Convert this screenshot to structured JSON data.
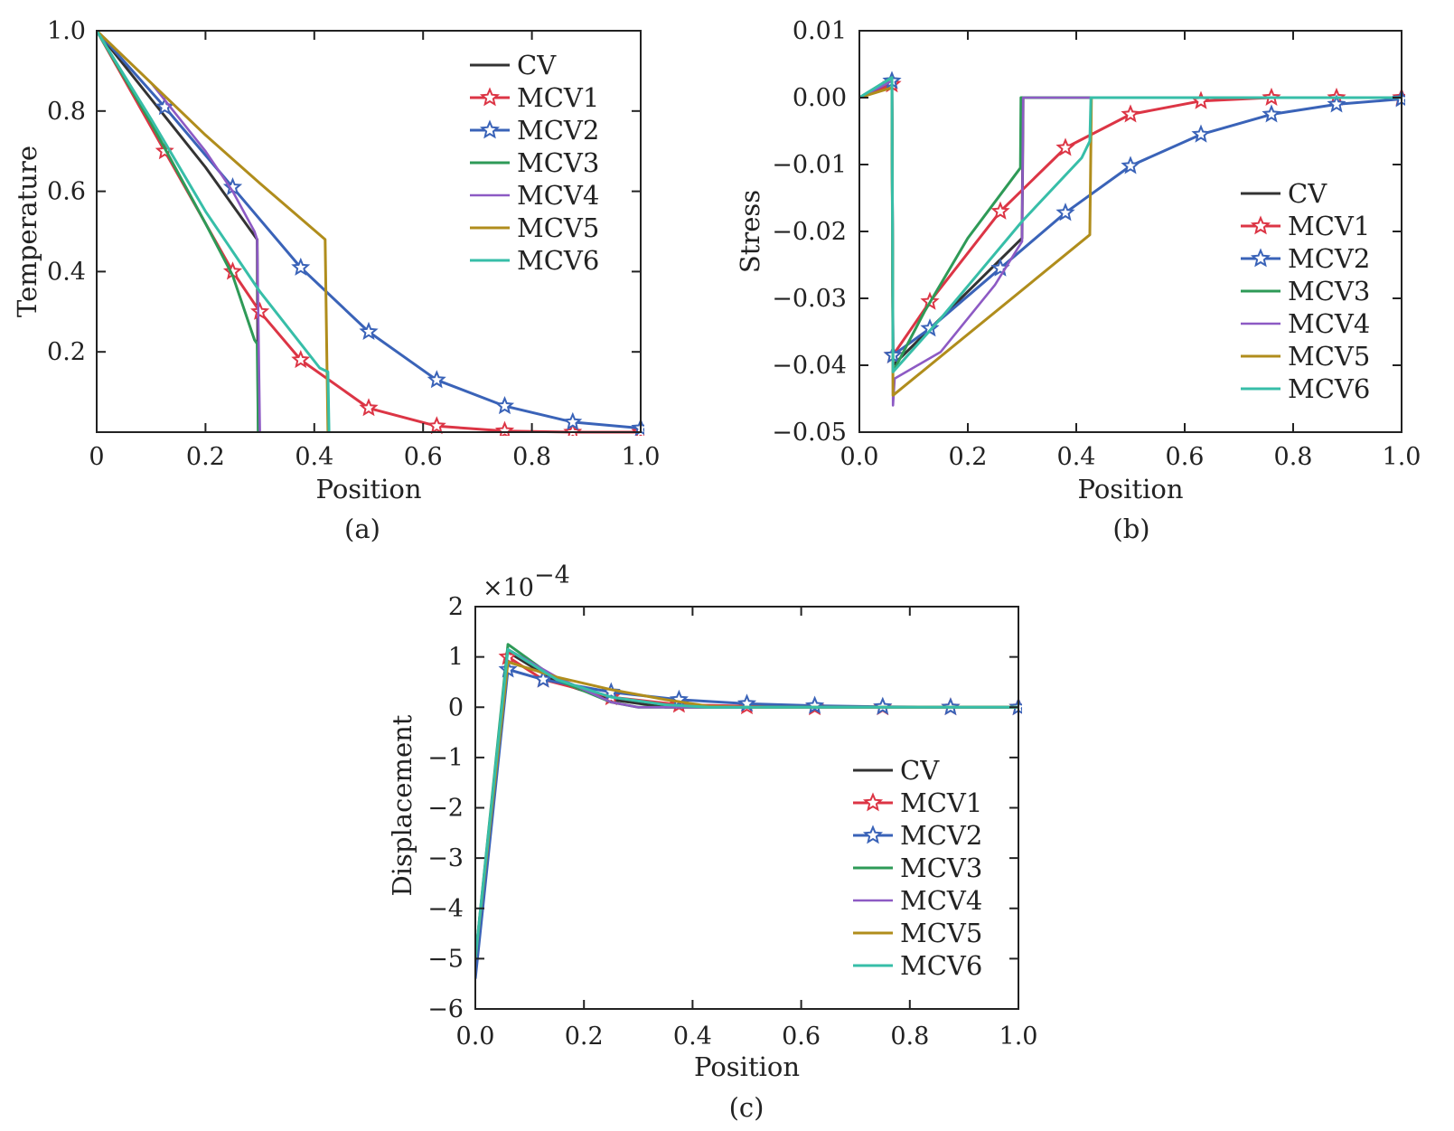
{
  "colors": {
    "CV": "#333333",
    "MCV1": "#dc3545",
    "MCV2": "#3a63b8",
    "MCV3": "#2e9a57",
    "MCV4": "#8d5ac4",
    "MCV5": "#b08d1c",
    "MCV6": "#37bea8"
  },
  "chart_data": [
    {
      "type": "line",
      "caption": "(a)",
      "xlabel": "Position",
      "ylabel": "Temperature",
      "xlim": [
        0,
        1
      ],
      "ylim": [
        0,
        1
      ],
      "xticks": [
        0,
        0.2,
        0.4,
        0.6,
        0.8,
        1.0
      ],
      "xtick_labels": [
        "0",
        "0.2",
        "0.4",
        "0.6",
        "0.8",
        "1.0"
      ],
      "yticks": [
        0.2,
        0.4,
        0.6,
        0.8,
        1.0
      ],
      "ytick_labels": [
        "0.2",
        "0.4",
        "0.6",
        "0.8",
        "1.0"
      ],
      "legend": "top-right",
      "series": [
        {
          "name": "CV",
          "marker": "none",
          "x": [
            0,
            0.1,
            0.2,
            0.295,
            0.297
          ],
          "y": [
            1,
            0.83,
            0.66,
            0.48,
            0.0
          ]
        },
        {
          "name": "MCV1",
          "marker": "star",
          "x": [
            0,
            0.125,
            0.25,
            0.3,
            0.375,
            0.5,
            0.625,
            0.75,
            0.875,
            1.0
          ],
          "y": [
            1,
            0.7,
            0.4,
            0.3,
            0.18,
            0.06,
            0.015,
            0.003,
            0.0,
            0.0
          ]
        },
        {
          "name": "MCV2",
          "marker": "star",
          "x": [
            0,
            0.125,
            0.25,
            0.375,
            0.5,
            0.625,
            0.75,
            0.875,
            1.0
          ],
          "y": [
            1,
            0.81,
            0.61,
            0.41,
            0.25,
            0.13,
            0.065,
            0.025,
            0.01
          ]
        },
        {
          "name": "MCV3",
          "marker": "none",
          "x": [
            0,
            0.1,
            0.2,
            0.25,
            0.29,
            0.295,
            0.297
          ],
          "y": [
            1,
            0.77,
            0.52,
            0.39,
            0.23,
            0.22,
            0.0
          ]
        },
        {
          "name": "MCV4",
          "marker": "none",
          "x": [
            0,
            0.1,
            0.2,
            0.25,
            0.29,
            0.295,
            0.3
          ],
          "y": [
            1,
            0.87,
            0.7,
            0.6,
            0.5,
            0.48,
            0.0
          ]
        },
        {
          "name": "MCV5",
          "marker": "none",
          "x": [
            0,
            0.1,
            0.2,
            0.3,
            0.42,
            0.425
          ],
          "y": [
            1,
            0.87,
            0.74,
            0.62,
            0.48,
            0.0
          ]
        },
        {
          "name": "MCV6",
          "marker": "none",
          "x": [
            0,
            0.1,
            0.2,
            0.3,
            0.41,
            0.425,
            0.427
          ],
          "y": [
            1,
            0.78,
            0.55,
            0.35,
            0.16,
            0.15,
            0.0
          ]
        }
      ]
    },
    {
      "type": "line",
      "caption": "(b)",
      "xlabel": "Position",
      "ylabel": "Stress",
      "xlim": [
        0,
        1
      ],
      "ylim": [
        -0.05,
        0.01
      ],
      "xticks": [
        0,
        0.2,
        0.4,
        0.6,
        0.8,
        1.0
      ],
      "xtick_labels": [
        "0.0",
        "0.2",
        "0.4",
        "0.6",
        "0.8",
        "1.0"
      ],
      "yticks": [
        -0.05,
        -0.04,
        -0.03,
        -0.02,
        -0.01,
        0.0,
        0.01
      ],
      "ytick_labels": [
        "−0.05",
        "−0.04",
        "−0.03",
        "−0.02",
        "−0.01",
        "0.00",
        "0.01"
      ],
      "legend": "bottom-right",
      "series": [
        {
          "name": "CV",
          "marker": "none",
          "x": [
            0,
            0.06,
            0.062,
            0.3,
            0.302,
            1.0
          ],
          "y": [
            0,
            0.002,
            -0.04,
            -0.021,
            0.0,
            0.0
          ]
        },
        {
          "name": "MCV1",
          "marker": "star",
          "x": [
            0,
            0.06,
            0.062,
            0.13,
            0.26,
            0.38,
            0.5,
            0.63,
            0.76,
            0.88,
            1.0
          ],
          "y": [
            0,
            0.002,
            -0.0385,
            -0.0305,
            -0.017,
            -0.0075,
            -0.0025,
            -0.0005,
            0.0,
            0.0,
            0.0
          ]
        },
        {
          "name": "MCV2",
          "marker": "star",
          "x": [
            0,
            0.06,
            0.062,
            0.13,
            0.26,
            0.38,
            0.5,
            0.63,
            0.76,
            0.88,
            1.0
          ],
          "y": [
            0,
            0.0025,
            -0.0385,
            -0.0345,
            -0.0255,
            -0.0172,
            -0.0102,
            -0.0055,
            -0.0025,
            -0.001,
            -0.0002
          ]
        },
        {
          "name": "MCV3",
          "marker": "none",
          "x": [
            0,
            0.06,
            0.062,
            0.12,
            0.2,
            0.297,
            0.298,
            1.0
          ],
          "y": [
            0,
            0.003,
            -0.041,
            -0.032,
            -0.021,
            -0.0105,
            0.0,
            0.0
          ]
        },
        {
          "name": "MCV4",
          "marker": "none",
          "x": [
            0,
            0.06,
            0.062,
            0.065,
            0.15,
            0.25,
            0.3,
            0.302,
            1.0
          ],
          "y": [
            0,
            0.0025,
            -0.046,
            -0.042,
            -0.038,
            -0.028,
            -0.0215,
            0.0,
            0.0
          ]
        },
        {
          "name": "MCV5",
          "marker": "none",
          "x": [
            0,
            0.06,
            0.062,
            0.425,
            0.428,
            1.0
          ],
          "y": [
            0,
            0.0015,
            -0.0445,
            -0.0205,
            0.0,
            0.0
          ]
        },
        {
          "name": "MCV6",
          "marker": "none",
          "x": [
            0,
            0.06,
            0.062,
            0.15,
            0.3,
            0.41,
            0.425,
            0.427,
            1.0
          ],
          "y": [
            0,
            0.003,
            -0.041,
            -0.033,
            -0.0185,
            -0.009,
            -0.0065,
            0.0,
            0.0
          ]
        }
      ]
    },
    {
      "type": "line",
      "caption": "(c)",
      "xlabel": "Position",
      "ylabel": "Displacement",
      "multiplier": "×10",
      "multiplier_exp": "−4",
      "xlim": [
        0,
        1
      ],
      "ylim": [
        -6,
        2
      ],
      "xticks": [
        0,
        0.2,
        0.4,
        0.6,
        0.8,
        1.0
      ],
      "xtick_labels": [
        "0.0",
        "0.2",
        "0.4",
        "0.6",
        "0.8",
        "1.0"
      ],
      "yticks": [
        -6,
        -5,
        -4,
        -3,
        -2,
        -1,
        0,
        1,
        2
      ],
      "ytick_labels": [
        "−6",
        "−5",
        "−4",
        "−3",
        "−2",
        "−1",
        "0",
        "1",
        "2"
      ],
      "legend": "bottom-right",
      "series": [
        {
          "name": "CV",
          "marker": "none",
          "x": [
            0,
            0.06,
            0.15,
            0.25,
            0.35,
            0.5,
            1.0
          ],
          "y": [
            -5.1,
            1.1,
            0.5,
            0.15,
            0.0,
            0.0,
            0.0
          ]
        },
        {
          "name": "MCV1",
          "marker": "star",
          "x": [
            0,
            0.06,
            0.125,
            0.25,
            0.375,
            0.5,
            0.625,
            0.75,
            0.875,
            1.0
          ],
          "y": [
            -5.1,
            1.0,
            0.55,
            0.2,
            0.05,
            0.02,
            0.0,
            0.0,
            0.0,
            0.0
          ]
        },
        {
          "name": "MCV2",
          "marker": "star",
          "x": [
            0,
            0.06,
            0.125,
            0.25,
            0.375,
            0.5,
            0.625,
            0.75,
            0.875,
            1.0
          ],
          "y": [
            -5.4,
            0.75,
            0.55,
            0.3,
            0.15,
            0.07,
            0.03,
            0.01,
            0.0,
            0.0
          ]
        },
        {
          "name": "MCV3",
          "marker": "none",
          "x": [
            0,
            0.06,
            0.15,
            0.25,
            0.3,
            0.4,
            1.0
          ],
          "y": [
            -5.0,
            1.25,
            0.55,
            0.1,
            0.0,
            0.0,
            0.0
          ]
        },
        {
          "name": "MCV4",
          "marker": "none",
          "x": [
            0,
            0.06,
            0.15,
            0.25,
            0.3,
            0.4,
            1.0
          ],
          "y": [
            -5.0,
            1.15,
            0.6,
            0.1,
            0.0,
            0.0,
            0.0
          ]
        },
        {
          "name": "MCV5",
          "marker": "none",
          "x": [
            0,
            0.06,
            0.15,
            0.25,
            0.35,
            0.43,
            0.5,
            1.0
          ],
          "y": [
            -5.0,
            0.9,
            0.6,
            0.35,
            0.15,
            0.02,
            0.0,
            0.0
          ]
        },
        {
          "name": "MCV6",
          "marker": "none",
          "x": [
            0,
            0.06,
            0.15,
            0.25,
            0.35,
            0.43,
            1.0
          ],
          "y": [
            -5.0,
            1.15,
            0.55,
            0.2,
            0.05,
            0.0,
            0.0
          ]
        }
      ]
    }
  ]
}
